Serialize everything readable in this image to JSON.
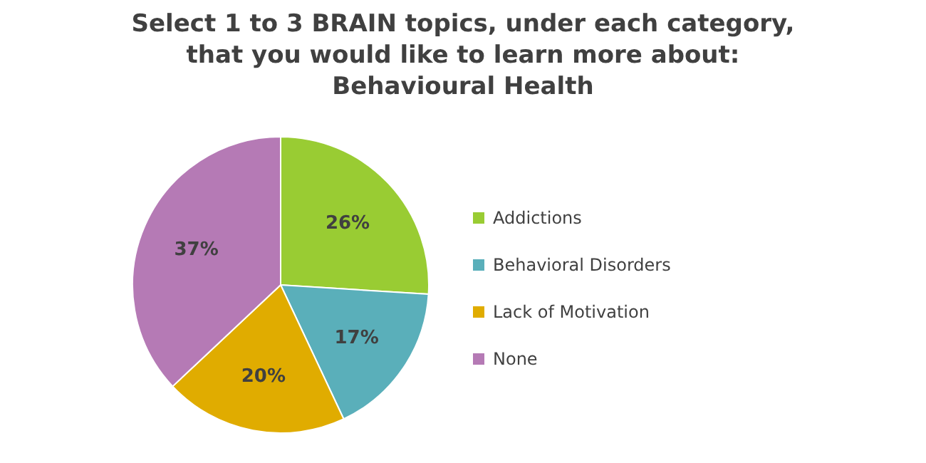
{
  "chart_data": {
    "type": "pie",
    "title": "Select 1 to 3 BRAIN topics, under each category, that you would like to learn more about: Behavioural Health",
    "categories": [
      "Addictions",
      "Behavioral Disorders",
      "Lack of Motivation",
      "None"
    ],
    "values": [
      26,
      17,
      20,
      37
    ],
    "colors": [
      "#99cc33",
      "#5aafba",
      "#e0ac00",
      "#b57ab5"
    ],
    "value_labels": [
      "26%",
      "17%",
      "20%",
      "37%"
    ],
    "legend": "right"
  }
}
